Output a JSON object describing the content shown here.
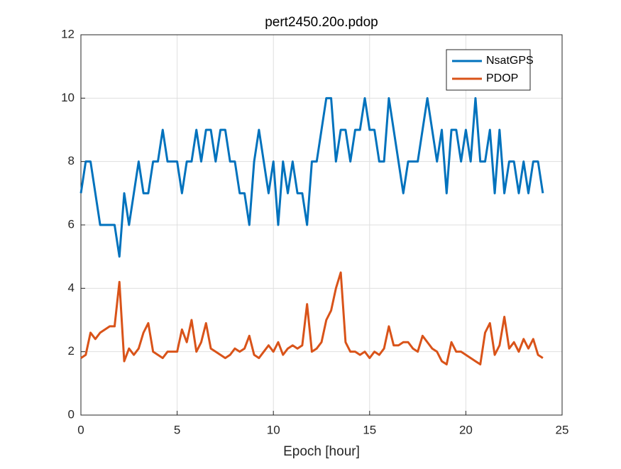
{
  "chart_data": {
    "type": "line",
    "title": "pert2450.20o.pdop",
    "xlabel": "Epoch [hour]",
    "x": [
      0,
      0.25,
      0.5,
      0.75,
      1,
      1.25,
      1.5,
      1.75,
      2,
      2.25,
      2.5,
      2.75,
      3,
      3.25,
      3.5,
      3.75,
      4,
      4.25,
      4.5,
      4.75,
      5,
      5.25,
      5.5,
      5.75,
      6,
      6.25,
      6.5,
      6.75,
      7,
      7.25,
      7.5,
      7.75,
      8,
      8.25,
      8.5,
      8.75,
      9,
      9.25,
      9.5,
      9.75,
      10,
      10.25,
      10.5,
      10.75,
      11,
      11.25,
      11.5,
      11.75,
      12,
      12.25,
      12.5,
      12.75,
      13,
      13.25,
      13.5,
      13.75,
      14,
      14.25,
      14.5,
      14.75,
      15,
      15.25,
      15.5,
      15.75,
      16,
      16.25,
      16.5,
      16.75,
      17,
      17.25,
      17.5,
      17.75,
      18,
      18.25,
      18.5,
      18.75,
      19,
      19.25,
      19.5,
      19.75,
      20,
      20.25,
      20.5,
      20.75,
      21,
      21.25,
      21.5,
      21.75,
      22,
      22.25,
      22.5,
      22.75,
      23,
      23.25,
      23.5,
      23.75,
      24
    ],
    "series": [
      {
        "name": "NsatGPS",
        "color": "#0072bd",
        "values": [
          7,
          8,
          8,
          7,
          6,
          6,
          6,
          6,
          5,
          7,
          6,
          7,
          8,
          7,
          7,
          8,
          8,
          9,
          8,
          8,
          8,
          7,
          8,
          8,
          9,
          8,
          9,
          9,
          8,
          9,
          9,
          8,
          8,
          7,
          7,
          6,
          8,
          9,
          8,
          7,
          8,
          6,
          8,
          7,
          8,
          7,
          7,
          6,
          8,
          8,
          9,
          10,
          10,
          8,
          9,
          9,
          8,
          9,
          9,
          10,
          9,
          9,
          8,
          8,
          10,
          9,
          8,
          7,
          8,
          8,
          8,
          9,
          10,
          9,
          8,
          9,
          7,
          9,
          9,
          8,
          9,
          8,
          10,
          8,
          8,
          9,
          7,
          9,
          7,
          8,
          8,
          7,
          8,
          7,
          8,
          8,
          7
        ]
      },
      {
        "name": "PDOP",
        "color": "#d95319",
        "values": [
          1.8,
          1.9,
          2.6,
          2.4,
          2.6,
          2.7,
          2.8,
          2.8,
          4.2,
          1.7,
          2.1,
          1.9,
          2.1,
          2.6,
          2.9,
          2.0,
          1.9,
          1.8,
          2.0,
          2.0,
          2.0,
          2.7,
          2.3,
          3.0,
          2.0,
          2.3,
          2.9,
          2.1,
          2.0,
          1.9,
          1.8,
          1.9,
          2.1,
          2.0,
          2.1,
          2.5,
          1.9,
          1.8,
          2.0,
          2.2,
          2.0,
          2.3,
          1.9,
          2.1,
          2.2,
          2.1,
          2.2,
          3.5,
          2.0,
          2.1,
          2.3,
          3.0,
          3.3,
          4.0,
          4.5,
          2.3,
          2.0,
          2.0,
          1.9,
          2.0,
          1.8,
          2.0,
          1.9,
          2.1,
          2.8,
          2.2,
          2.2,
          2.3,
          2.3,
          2.1,
          2.0,
          2.5,
          2.3,
          2.1,
          2.0,
          1.7,
          1.6,
          2.3,
          2.0,
          2.0,
          1.9,
          1.8,
          1.7,
          1.6,
          2.6,
          2.9,
          1.9,
          2.2,
          3.1,
          2.1,
          2.3,
          2.0,
          2.4,
          2.1,
          2.4,
          1.9,
          1.8
        ]
      }
    ],
    "xlim": [
      0,
      25
    ],
    "xticks": [
      0,
      5,
      10,
      15,
      20,
      25
    ],
    "ylim": [
      0,
      12
    ],
    "yticks": [
      0,
      2,
      4,
      6,
      8,
      10,
      12
    ],
    "grid": true,
    "legend": "northeast"
  }
}
